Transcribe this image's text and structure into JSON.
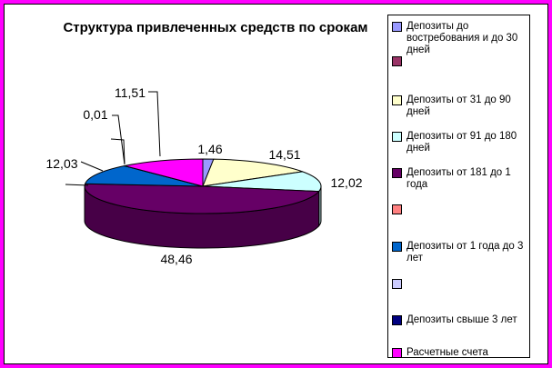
{
  "title": "Структура привлеченных средств по срокам",
  "frame": {
    "outer_border_color": "#FF00FF",
    "inner_border_color": "#000000",
    "background": "#FFFFFF"
  },
  "chart_data": {
    "type": "pie",
    "style": "3d-pie",
    "title": "Структура привлеченных средств по срокам",
    "unit": "percent",
    "legend_position": "right",
    "decimal_separator": ",",
    "slices": [
      {
        "name": "Депозиты до востребования и до 30 дней",
        "value": 1.46,
        "display": "1,46",
        "color": "#9999FF"
      },
      {
        "name": "",
        "value": 0,
        "display": "",
        "color": "#993366"
      },
      {
        "name": "Депозиты от 31 до 90 дней",
        "value": 14.51,
        "display": "14,51",
        "color": "#FFFFCC"
      },
      {
        "name": "Депозиты от 91 до 180 дней",
        "value": 12.02,
        "display": "12,02",
        "color": "#CCFFFF"
      },
      {
        "name": "Депозиты от 181 до 1 года",
        "value": 48.46,
        "display": "48,46",
        "color": "#660066"
      },
      {
        "name": "",
        "value": 0,
        "display": "",
        "color": "#FF8080"
      },
      {
        "name": "Депозиты от 1 года до 3 лет",
        "value": 12.03,
        "display": "12,03",
        "color": "#0066CC"
      },
      {
        "name": "",
        "value": 0,
        "display": "",
        "color": "#CCCCFF"
      },
      {
        "name": "Депозиты свыше 3 лет",
        "value": 0.01,
        "display": "0,01",
        "color": "#000080"
      },
      {
        "name": "Расчетные счета",
        "value": 11.51,
        "display": "11,51",
        "color": "#FF00FF"
      }
    ]
  }
}
